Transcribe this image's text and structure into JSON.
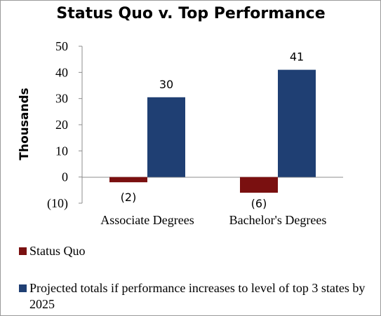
{
  "chart_data": {
    "type": "bar",
    "title": "Status Quo v. Top Performance",
    "ylabel": "Thousands",
    "categories": [
      "Associate Degrees",
      "Bachelor's Degrees"
    ],
    "series": [
      {
        "name": "Status Quo",
        "values": [
          -2,
          -6
        ],
        "labels": [
          "(2)",
          "(6)"
        ],
        "color": "#7a1010"
      },
      {
        "name": "Projected totals if performance increases to level of top 3 states by 2025",
        "values": [
          30.5,
          41
        ],
        "labels": [
          "30",
          "41"
        ],
        "color": "#1f3f73"
      }
    ],
    "ylim": [
      -10,
      50
    ],
    "yticks": [
      50,
      40,
      30,
      20,
      10,
      0,
      -10
    ],
    "ytick_labels": [
      "50",
      "40",
      "30",
      "20",
      "10",
      "0",
      "(10)"
    ],
    "grid": false,
    "legend_position": "bottom"
  }
}
